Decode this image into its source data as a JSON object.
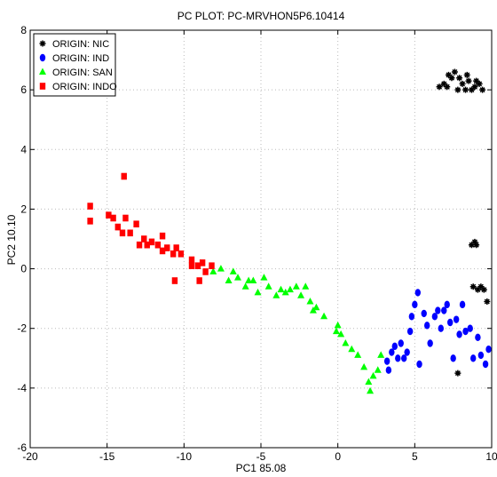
{
  "chart_data": {
    "type": "scatter",
    "title": "PC PLOT: PC-MRVHON5P6.10414",
    "xlabel": "PC1 85.08",
    "ylabel": "PC2 10.10",
    "xlim": [
      -20,
      10
    ],
    "ylim": [
      -6,
      8
    ],
    "xticks": [
      -20,
      -15,
      -10,
      -5,
      0,
      5,
      10
    ],
    "yticks": [
      -6,
      -4,
      -2,
      0,
      2,
      4,
      6,
      8
    ],
    "grid": true,
    "legend_position": "top-left",
    "series": [
      {
        "name": "ORIGIN: NIC",
        "marker": "star",
        "color": "#000000",
        "points": [
          [
            6.6,
            6.1
          ],
          [
            6.9,
            6.2
          ],
          [
            7.2,
            6.5
          ],
          [
            7.4,
            6.4
          ],
          [
            7.6,
            6.6
          ],
          [
            7.9,
            6.4
          ],
          [
            8.1,
            6.2
          ],
          [
            8.3,
            6.0
          ],
          [
            8.5,
            6.3
          ],
          [
            8.7,
            6.0
          ],
          [
            8.9,
            6.1
          ],
          [
            9.2,
            6.2
          ],
          [
            9.4,
            6.0
          ],
          [
            7.1,
            6.1
          ],
          [
            7.8,
            6.0
          ],
          [
            8.4,
            6.5
          ],
          [
            9.0,
            6.3
          ],
          [
            8.7,
            0.8
          ],
          [
            8.9,
            0.9
          ],
          [
            9.0,
            0.8
          ],
          [
            8.8,
            -0.6
          ],
          [
            9.1,
            -0.7
          ],
          [
            9.3,
            -0.6
          ],
          [
            9.5,
            -0.7
          ],
          [
            9.7,
            -1.1
          ],
          [
            7.8,
            -3.5
          ]
        ]
      },
      {
        "name": "ORIGIN: IND",
        "marker": "circle",
        "color": "#0000ff",
        "points": [
          [
            3.2,
            -3.1
          ],
          [
            3.3,
            -3.4
          ],
          [
            3.5,
            -2.8
          ],
          [
            3.7,
            -2.6
          ],
          [
            3.9,
            -3.0
          ],
          [
            4.1,
            -2.5
          ],
          [
            4.3,
            -3.0
          ],
          [
            4.5,
            -2.8
          ],
          [
            4.7,
            -2.1
          ],
          [
            4.8,
            -1.6
          ],
          [
            5.0,
            -1.2
          ],
          [
            5.2,
            -0.8
          ],
          [
            5.3,
            -3.2
          ],
          [
            5.6,
            -1.5
          ],
          [
            5.8,
            -1.9
          ],
          [
            6.0,
            -2.5
          ],
          [
            6.3,
            -1.6
          ],
          [
            6.5,
            -1.4
          ],
          [
            6.7,
            -2.0
          ],
          [
            6.9,
            -1.4
          ],
          [
            7.1,
            -1.2
          ],
          [
            7.3,
            -1.8
          ],
          [
            7.5,
            -3.0
          ],
          [
            7.7,
            -1.7
          ],
          [
            7.9,
            -2.2
          ],
          [
            8.1,
            -1.2
          ],
          [
            8.3,
            -2.1
          ],
          [
            8.6,
            -2.0
          ],
          [
            8.8,
            -3.0
          ],
          [
            9.1,
            -2.3
          ],
          [
            9.3,
            -2.9
          ],
          [
            9.6,
            -3.2
          ],
          [
            9.8,
            -2.7
          ]
        ]
      },
      {
        "name": "ORIGIN: SAN",
        "marker": "triangle",
        "color": "#00ff00",
        "points": [
          [
            -8.1,
            -0.1
          ],
          [
            -7.6,
            0.0
          ],
          [
            -7.1,
            -0.4
          ],
          [
            -6.8,
            -0.1
          ],
          [
            -6.5,
            -0.3
          ],
          [
            -6.0,
            -0.6
          ],
          [
            -5.8,
            -0.4
          ],
          [
            -5.5,
            -0.4
          ],
          [
            -5.2,
            -0.8
          ],
          [
            -4.8,
            -0.3
          ],
          [
            -4.5,
            -0.6
          ],
          [
            -4.0,
            -0.9
          ],
          [
            -3.7,
            -0.7
          ],
          [
            -3.4,
            -0.8
          ],
          [
            -3.1,
            -0.7
          ],
          [
            -2.7,
            -0.6
          ],
          [
            -2.4,
            -0.9
          ],
          [
            -2.1,
            -0.6
          ],
          [
            -1.8,
            -1.1
          ],
          [
            -1.6,
            -1.4
          ],
          [
            -1.4,
            -1.3
          ],
          [
            -0.9,
            -1.6
          ],
          [
            -0.1,
            -2.1
          ],
          [
            0.2,
            -2.2
          ],
          [
            0.5,
            -2.5
          ],
          [
            0.9,
            -2.7
          ],
          [
            1.3,
            -2.9
          ],
          [
            1.7,
            -3.3
          ],
          [
            2.0,
            -3.8
          ],
          [
            2.3,
            -3.6
          ],
          [
            2.6,
            -3.4
          ],
          [
            2.8,
            -2.9
          ],
          [
            2.1,
            -4.1
          ],
          [
            0.0,
            -1.9
          ]
        ]
      },
      {
        "name": "ORIGIN: INDO",
        "marker": "square",
        "color": "#ff0000",
        "points": [
          [
            -16.1,
            2.1
          ],
          [
            -16.1,
            1.6
          ],
          [
            -14.9,
            1.8
          ],
          [
            -14.6,
            1.7
          ],
          [
            -14.3,
            1.4
          ],
          [
            -14.0,
            1.2
          ],
          [
            -13.8,
            1.7
          ],
          [
            -13.5,
            1.2
          ],
          [
            -13.1,
            1.5
          ],
          [
            -12.9,
            0.8
          ],
          [
            -12.6,
            1.0
          ],
          [
            -12.4,
            0.8
          ],
          [
            -12.1,
            0.9
          ],
          [
            -11.7,
            0.8
          ],
          [
            -11.4,
            0.6
          ],
          [
            -11.1,
            0.7
          ],
          [
            -10.7,
            0.5
          ],
          [
            -10.5,
            0.7
          ],
          [
            -10.2,
            0.5
          ],
          [
            -9.5,
            0.3
          ],
          [
            -9.1,
            0.1
          ],
          [
            -8.8,
            0.2
          ],
          [
            -8.6,
            -0.1
          ],
          [
            -8.2,
            0.1
          ],
          [
            -10.6,
            -0.4
          ],
          [
            -9.5,
            0.1
          ],
          [
            -13.9,
            3.1
          ],
          [
            -11.4,
            1.1
          ],
          [
            -9.0,
            -0.4
          ]
        ]
      }
    ]
  }
}
